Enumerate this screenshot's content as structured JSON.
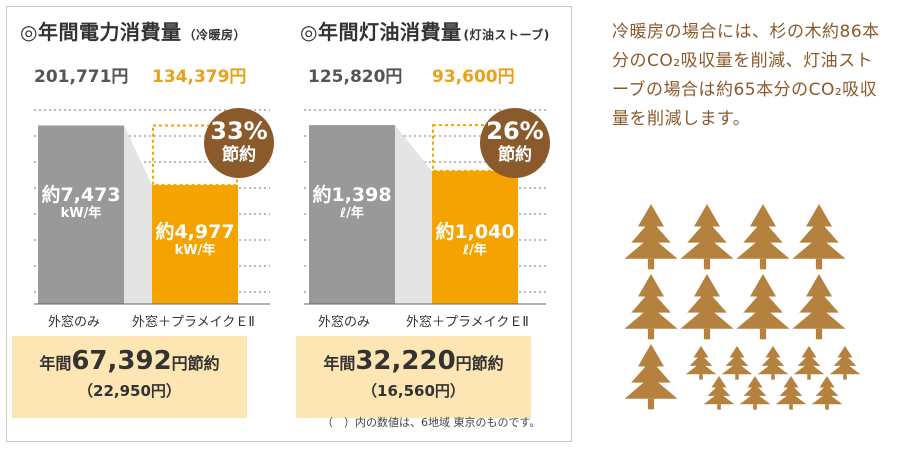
{
  "chart_data": [
    {
      "type": "bar",
      "title": "◎年間電力消費量",
      "subtitle": "（冷暖房）",
      "categories": [
        "外窓のみ",
        "外窓＋プラメイクＥⅡ"
      ],
      "values": [
        7473,
        4977
      ],
      "unit": "kW/年",
      "value_labels": [
        "約7,473",
        "約4,977"
      ],
      "cost_labels": [
        "201,771円",
        "134,379円"
      ],
      "savings_percent": "33%",
      "savings_text": "節約",
      "ylim": [
        0,
        9000
      ],
      "grid": true,
      "summary": {
        "prefix": "年間",
        "amount": "67,392",
        "suffix": "円節約",
        "paren": "（22,950円）"
      }
    },
    {
      "type": "bar",
      "title": "◎年間灯油消費量",
      "subtitle": "(灯油ストーブ)",
      "categories": [
        "外窓のみ",
        "外窓＋プラメイクＥⅡ"
      ],
      "values": [
        1398,
        1040
      ],
      "unit": "ℓ/年",
      "value_labels": [
        "約1,398",
        "約1,040"
      ],
      "cost_labels": [
        "125,820円",
        "93,600円"
      ],
      "savings_percent": "26%",
      "savings_text": "節約",
      "ylim": [
        0,
        1680
      ],
      "grid": true,
      "summary": {
        "prefix": "年間",
        "amount": "32,220",
        "suffix": "円節約",
        "paren": "（16,560円）"
      }
    }
  ],
  "footnote": "（　）内の数値は、6地域 東京のものです。",
  "side_text": "冷暖房の場合には、杉の木約86本分のCO₂吸収量を削減、灯油ストーブの場合は約65本分のCO₂吸収量を削減します。",
  "colors": {
    "gray_bar": "#999999",
    "orange_bar": "#f5a300",
    "brown": "#8b5a2b",
    "tree": "#b5813e",
    "summary_bg": "#fde6b3"
  },
  "icons": {
    "tree": "cedar-tree-icon"
  }
}
